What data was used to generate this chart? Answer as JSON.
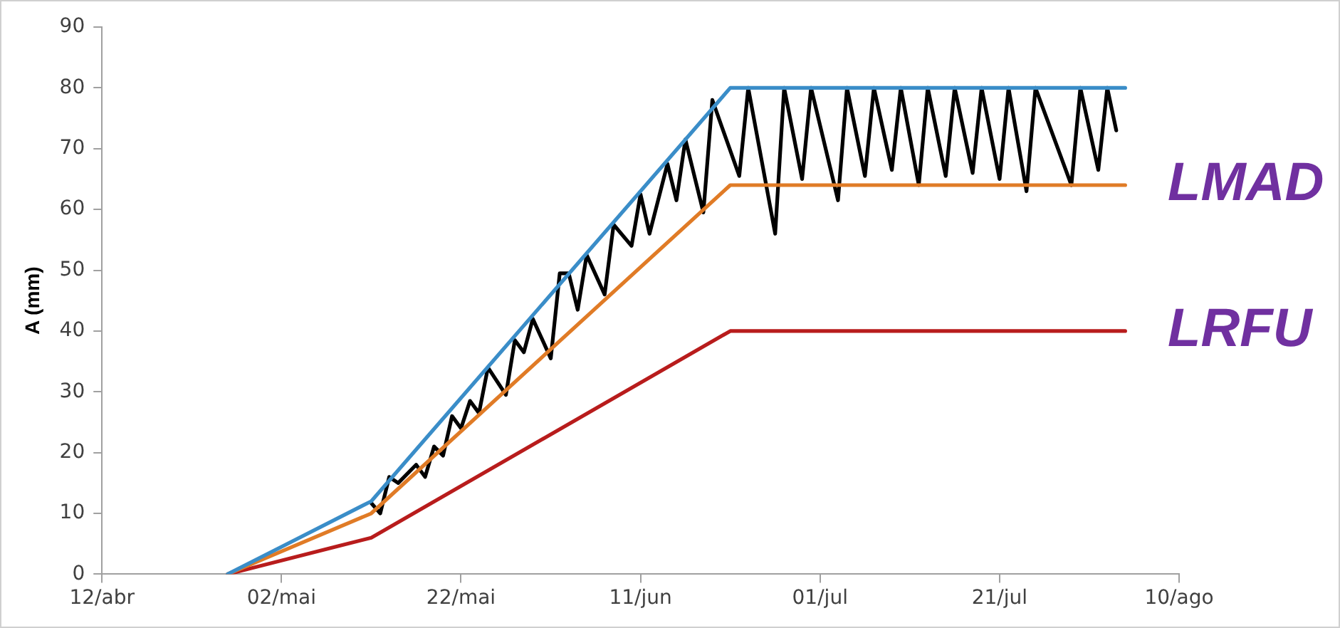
{
  "chart_data": {
    "type": "line",
    "ylabel": "A (mm)",
    "xlim": [
      "--04-12",
      "--08-10"
    ],
    "xticks": [
      {
        "value": "--04-12",
        "label": "12/abr"
      },
      {
        "value": "--05-02",
        "label": "02/mai"
      },
      {
        "value": "--05-22",
        "label": "22/mai"
      },
      {
        "value": "--06-11",
        "label": "11/jun"
      },
      {
        "value": "--07-01",
        "label": "01/jul"
      },
      {
        "value": "--07-21",
        "label": "21/jul"
      },
      {
        "value": "--08-10",
        "label": "10/ago"
      }
    ],
    "ylim": [
      0,
      90
    ],
    "yticks": [
      0,
      10,
      20,
      30,
      40,
      50,
      60,
      70,
      80,
      90
    ],
    "grid": false,
    "legend": false,
    "marker": "none",
    "line_style": "solid",
    "series": [
      {
        "color": "#3a8dc8",
        "x": [
          "--04-26",
          "--05-12",
          "--06-21",
          "--08-04"
        ],
        "values": [
          0,
          12,
          80,
          80
        ]
      },
      {
        "name": "LMAD",
        "color": "#e07b26",
        "x": [
          "--04-26",
          "--05-12",
          "--06-21",
          "--08-04"
        ],
        "values": [
          0,
          10,
          64,
          64
        ]
      },
      {
        "name": "LRFU",
        "color": "#b81c1c",
        "x": [
          "--04-26",
          "--05-12",
          "--06-21",
          "--08-04"
        ],
        "values": [
          0,
          6,
          40,
          40
        ]
      },
      {
        "color": "#000000",
        "x": [
          "--05-12",
          "--05-13",
          "--05-14",
          "--05-15",
          "--05-17",
          "--05-18",
          "--05-19",
          "--05-20",
          "--05-21",
          "--05-22",
          "--05-23",
          "--05-24",
          "--05-25",
          "--05-27",
          "--05-28",
          "--05-29",
          "--05-30",
          "--06-01",
          "--06-02",
          "--06-03",
          "--06-04",
          "--06-05",
          "--06-07",
          "--06-08",
          "--06-10",
          "--06-11",
          "--06-12",
          "--06-14",
          "--06-15",
          "--06-16",
          "--06-18",
          "--06-19",
          "--06-22",
          "--06-23",
          "--06-26",
          "--06-27",
          "--06-29",
          "--06-30",
          "--07-03",
          "--07-04",
          "--07-06",
          "--07-07",
          "--07-09",
          "--07-10",
          "--07-12",
          "--07-13",
          "--07-15",
          "--07-16",
          "--07-18",
          "--07-19",
          "--07-21",
          "--07-22",
          "--07-24",
          "--07-25",
          "--07-29",
          "--07-30",
          "--08-01",
          "--08-02",
          "--08-03"
        ],
        "values": [
          11.7,
          10,
          16,
          15,
          18,
          16,
          21,
          19.5,
          26,
          24,
          28.5,
          26.5,
          34,
          29.5,
          38.5,
          36.5,
          42,
          35.5,
          49.5,
          49.5,
          43.5,
          52.5,
          46,
          57.5,
          54,
          62.5,
          56,
          67.5,
          61.5,
          71.5,
          59.5,
          78,
          65.5,
          80,
          56,
          80,
          65,
          80,
          61.5,
          80,
          65.5,
          80,
          66.5,
          80,
          64,
          80,
          65.5,
          80,
          66,
          80,
          65,
          80,
          63,
          80,
          64,
          80,
          66.5,
          80,
          73
        ]
      }
    ]
  }
}
